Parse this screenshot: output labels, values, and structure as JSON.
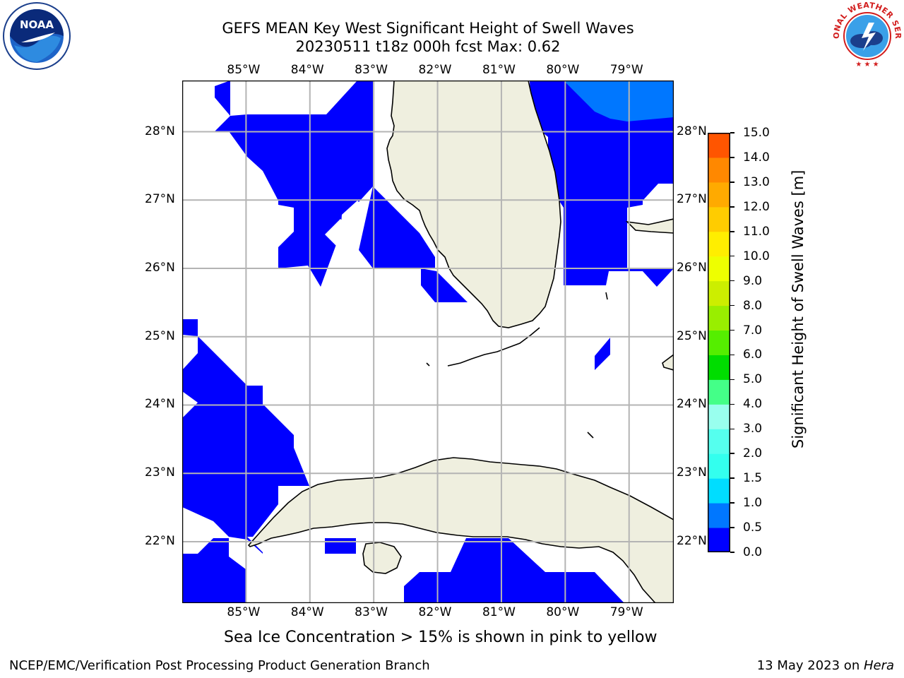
{
  "title": {
    "line1": "GEFS MEAN Key West Significant Height of Swell Waves",
    "line2": "20230511 t18z 000h fcst   Max: 0.62"
  },
  "logos": {
    "left": "noaa-logo",
    "right": "nws-logo",
    "left_text": "NOAA",
    "right_text": "NATIONAL WEATHER SERVICE"
  },
  "map": {
    "lon_labels": [
      "85°W",
      "84°W",
      "83°W",
      "82°W",
      "81°W",
      "80°W",
      "79°W"
    ],
    "lat_labels": [
      "28°N",
      "27°N",
      "26°N",
      "25°N",
      "24°N",
      "23°N",
      "22°N"
    ],
    "lon_values": [
      -85,
      -84,
      -83,
      -82,
      -81,
      -80,
      -79
    ],
    "lat_values": [
      28,
      27,
      26,
      25,
      24,
      23,
      22
    ],
    "extent": {
      "lon": [
        -86,
        -78.3
      ],
      "lat": [
        21.1,
        28.75
      ]
    },
    "land_color": "#efefdf",
    "grid_color": "#b4b4b4"
  },
  "colorbar": {
    "title": "Significant Height of Swell Waves [m]",
    "ticks": [
      "0.0",
      "0.5",
      "1.0",
      "1.5",
      "2.0",
      "3.0",
      "4.0",
      "5.0",
      "6.0",
      "7.0",
      "8.0",
      "9.0",
      "10.0",
      "11.0",
      "12.0",
      "13.0",
      "14.0",
      "15.0"
    ],
    "colors": [
      "#0000ff",
      "#0077ff",
      "#00ddff",
      "#33ffee",
      "#55ffee",
      "#99ffee",
      "#44ff88",
      "#00dd00",
      "#55ee00",
      "#99ee00",
      "#ccee00",
      "#eeff00",
      "#ffee00",
      "#ffcc00",
      "#ffaa00",
      "#ff8800",
      "#ff5500",
      "#ff2200",
      "#ff0000"
    ]
  },
  "note": "Sea Ice Concentration > 15% is shown in pink to yellow",
  "footer": {
    "left": "NCEP/EMC/Verification Post Processing Product Generation Branch",
    "right_prefix": "13 May 2023 on ",
    "right_host": "Hera"
  }
}
